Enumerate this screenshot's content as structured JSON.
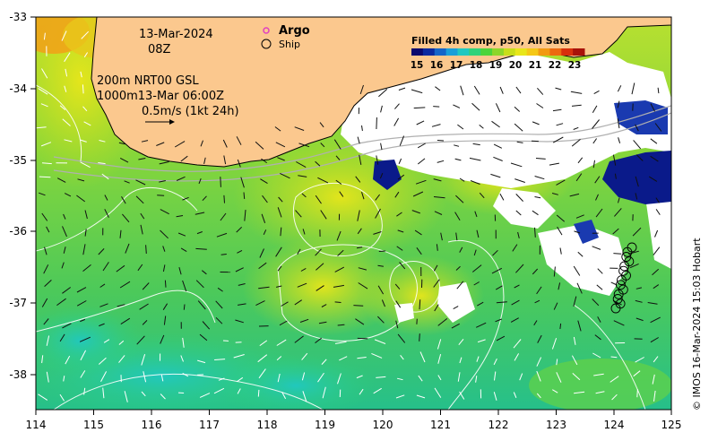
{
  "map": {
    "x_ticks": [
      "114",
      "115",
      "116",
      "117",
      "118",
      "119",
      "120",
      "121",
      "122",
      "123",
      "124",
      "125"
    ],
    "y_ticks": [
      "-33",
      "-34",
      "-35",
      "-36",
      "-37",
      "-38"
    ]
  },
  "annotations": {
    "date": "13-Mar-2024",
    "hour": "08Z",
    "contour_line1": "200m  NRT00 GSL",
    "contour_line2": "1000m13-Mar 06:00Z",
    "scale_text": "0.5m/s (1kt 24h)"
  },
  "legend": {
    "argo_label": "Argo",
    "ship_label": "Ship",
    "argo_color": "#e040c0"
  },
  "colorbar": {
    "title": "Filled 4h comp, p50, All Sats",
    "ticks": [
      "15",
      "16",
      "17",
      "18",
      "19",
      "20",
      "21",
      "22",
      "23"
    ],
    "colors": [
      "#0a0a6e",
      "#0a2aa0",
      "#1565c8",
      "#1a9fd8",
      "#20c8c0",
      "#30d27a",
      "#4cd43a",
      "#8cd62a",
      "#c8de1a",
      "#e8e61a",
      "#f5c816",
      "#f29a12",
      "#ec6a10",
      "#d8300c",
      "#a8120a"
    ]
  },
  "ship_track": {
    "marker_count": 14
  },
  "credit": "© IMOS 16-Mar-2024 15:03 Hobart"
}
